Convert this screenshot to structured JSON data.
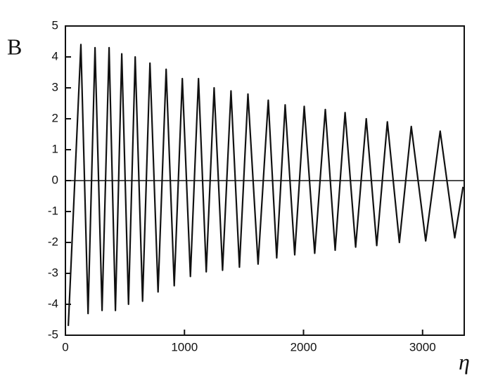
{
  "chart_data": {
    "type": "line",
    "y_label": "B",
    "x_label": "η",
    "x": [
      24,
      130,
      190,
      249,
      308,
      367,
      420,
      473,
      530,
      586,
      648,
      710,
      778,
      846,
      914,
      982,
      1050,
      1118,
      1183,
      1249,
      1320,
      1391,
      1462,
      1533,
      1618,
      1704,
      1775,
      1846,
      1926,
      2006,
      2094,
      2183,
      2266,
      2349,
      2438,
      2527,
      2615,
      2704,
      2805,
      2905,
      3026,
      3148,
      3270,
      3340
    ],
    "series": [
      {
        "color": "#111111",
        "values": [
          -4.7,
          4.4,
          -4.3,
          4.3,
          -4.2,
          4.3,
          -4.2,
          4.1,
          -4.0,
          4.0,
          -3.9,
          3.8,
          -3.6,
          3.6,
          -3.4,
          3.3,
          -3.1,
          3.3,
          -2.95,
          3.0,
          -2.9,
          2.9,
          -2.8,
          2.8,
          -2.7,
          2.6,
          -2.5,
          2.45,
          -2.4,
          2.4,
          -2.35,
          2.3,
          -2.25,
          2.2,
          -2.15,
          2.0,
          -2.1,
          1.9,
          -2.0,
          1.75,
          -1.95,
          1.6,
          -1.85,
          -0.2
        ]
      }
    ],
    "xlim": [
      0,
      3350
    ],
    "xticks": [
      0,
      1000,
      2000,
      3000
    ],
    "ylim": [
      -5,
      5
    ],
    "yticks": [
      -5,
      -4,
      -3,
      -2,
      -1,
      0,
      1,
      2,
      3,
      4,
      5
    ],
    "grid": false
  }
}
